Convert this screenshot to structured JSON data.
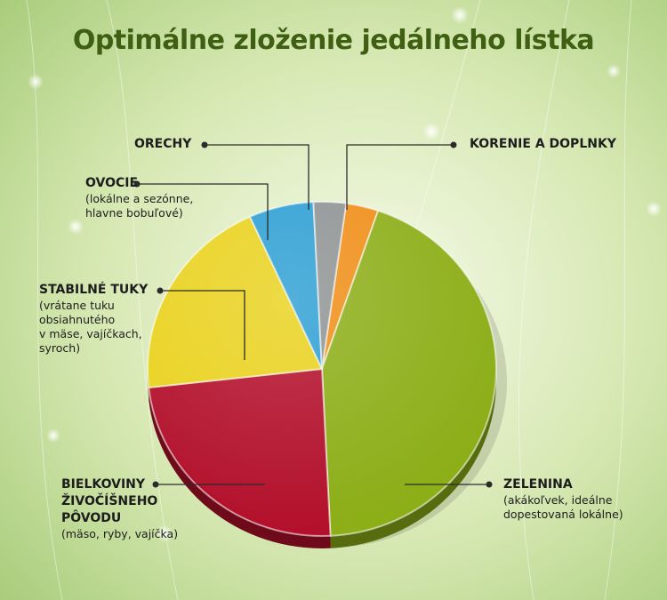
{
  "title": "Optimálne zloženie jedálneho lístka",
  "chart_data": {
    "type": "pie",
    "title": "Optimálne zloženie jedálneho lístka",
    "slices": [
      {
        "name": "KORENIE A DOPLNKY",
        "value": 3,
        "color": "#ef8e17"
      },
      {
        "name": "ZELENINA",
        "value": 44,
        "color": "#8cae17"
      },
      {
        "name": "BIELKOVINY ŽIVOČÍŠNEHO PÔVODU",
        "value": 24,
        "color": "#b3102b"
      },
      {
        "name": "STABILNÉ TUKY",
        "value": 20,
        "color": "#e9d21d"
      },
      {
        "name": "OVOCIE",
        "value": 6,
        "color": "#2d9fd3"
      },
      {
        "name": "ORECHY",
        "value": 3,
        "color": "#8f9393"
      }
    ]
  },
  "labels": {
    "orechy": {
      "name": "ORECHY"
    },
    "korenie": {
      "name": "KORENIE A DOPLNKY"
    },
    "ovocie": {
      "name": "OVOCIE",
      "desc": [
        "(lokálne a sezónne,",
        "hlavne bobuľové)"
      ]
    },
    "tuky": {
      "name": "STABILNÉ TUKY",
      "desc": [
        "(vrátane tuku",
        "obsiahnutého",
        "v mäse, vajíčkach,",
        "syroch)"
      ]
    },
    "bielkoviny": {
      "name": [
        "BIELKOVINY",
        "ŽIVOČÍŠNEHO",
        "PÔVODU"
      ],
      "desc": [
        "(mäso, ryby, vajíčka)"
      ]
    },
    "zelenina": {
      "name": "ZELENINA",
      "desc": [
        "(akákoľvek, ideálne",
        "dopestovaná lokálne)"
      ]
    }
  }
}
